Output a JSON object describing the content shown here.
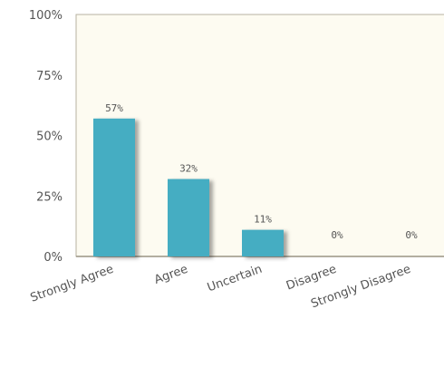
{
  "chart_data": {
    "type": "bar",
    "categories": [
      "Strongly Agree",
      "Agree",
      "Uncertain",
      "Disagree",
      "Strongly Disagree"
    ],
    "values": [
      57,
      32,
      11,
      0,
      0
    ],
    "data_labels": [
      "57%",
      "32%",
      "11%",
      "0%",
      "0%"
    ],
    "y_ticks": [
      "0%",
      "25%",
      "50%",
      "75%",
      "100%"
    ],
    "ylim": [
      0,
      100
    ],
    "grid": false,
    "bar_color": "#44adc2",
    "plot_background": "#fdfbf1"
  }
}
